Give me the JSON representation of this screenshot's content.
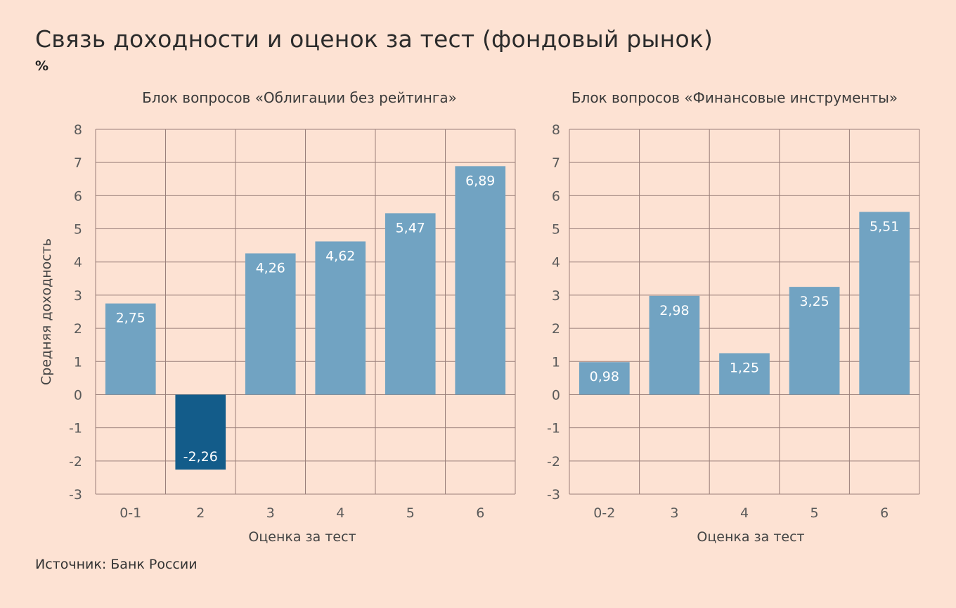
{
  "title": "Связь доходности и оценок за тест (фондовый рынок)",
  "unit": "%",
  "source": "Источник: Банк России",
  "colors": {
    "background": "#fde2d3",
    "bar": "#71a3c2",
    "bar_highlight": "#135c8a",
    "grid": "#9a7f7a"
  },
  "chart_data": [
    {
      "type": "bar",
      "title": "Блок вопросов «Облигации без рейтинга»",
      "categories": [
        "0-1",
        "2",
        "3",
        "4",
        "5",
        "6"
      ],
      "values": [
        2.75,
        -2.26,
        4.26,
        4.62,
        5.47,
        6.89
      ],
      "labels": [
        "2,75",
        "-2,26",
        "4,26",
        "4,62",
        "5,47",
        "6,89"
      ],
      "highlight": [
        false,
        true,
        false,
        false,
        false,
        false
      ],
      "xlabel": "Оценка за тест",
      "ylabel": "Средняя доходность",
      "ylim": [
        -3,
        8
      ],
      "yticks": [
        8,
        7,
        6,
        5,
        4,
        3,
        2,
        1,
        0,
        -1,
        -2,
        -3
      ],
      "grid": true
    },
    {
      "type": "bar",
      "title": "Блок вопросов «Финансовые инструменты»",
      "categories": [
        "0-2",
        "3",
        "4",
        "5",
        "6"
      ],
      "values": [
        0.98,
        2.98,
        1.25,
        3.25,
        5.51
      ],
      "labels": [
        "0,98",
        "2,98",
        "1,25",
        "3,25",
        "5,51"
      ],
      "highlight": [
        false,
        false,
        false,
        false,
        false
      ],
      "xlabel": "Оценка за тест",
      "ylabel": "",
      "ylim": [
        -3,
        8
      ],
      "yticks": [
        8,
        7,
        6,
        5,
        4,
        3,
        2,
        1,
        0,
        -1,
        -2,
        -3
      ],
      "grid": true
    }
  ]
}
